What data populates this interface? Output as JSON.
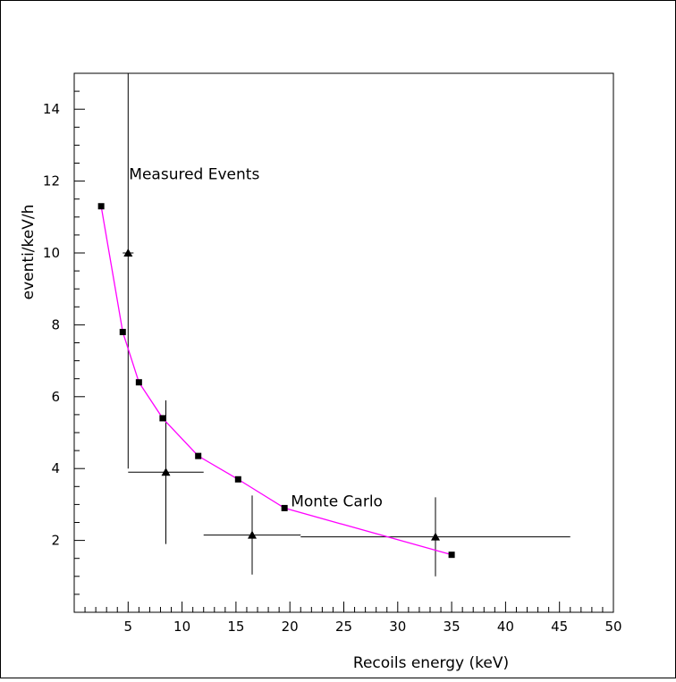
{
  "chart_data": {
    "type": "scatter",
    "xlabel": "Recoils energy (keV)",
    "ylabel": "eventi/keV/h",
    "xlim": [
      0,
      50
    ],
    "ylim": [
      0,
      15
    ],
    "x_ticks": [
      5,
      10,
      15,
      20,
      25,
      30,
      35,
      40,
      45,
      50
    ],
    "y_ticks": [
      2,
      4,
      6,
      8,
      10,
      12,
      14
    ],
    "grid": false,
    "legend": "none",
    "annotations": [
      {
        "text": "Measured Events",
        "x": 5.0,
        "y": 12.2
      },
      {
        "text": "Monte Carlo",
        "x": 20.0,
        "y": 3.1
      }
    ],
    "series": [
      {
        "name": "Monte Carlo",
        "marker": "square",
        "line": true,
        "color": "#ff00ff",
        "points": [
          {
            "x": 2.5,
            "y": 11.3
          },
          {
            "x": 4.5,
            "y": 7.8
          },
          {
            "x": 6.0,
            "y": 6.4
          },
          {
            "x": 8.2,
            "y": 5.4
          },
          {
            "x": 11.5,
            "y": 4.35
          },
          {
            "x": 15.2,
            "y": 3.7
          },
          {
            "x": 19.5,
            "y": 2.9
          },
          {
            "x": 35.0,
            "y": 1.6
          }
        ]
      },
      {
        "name": "Measured Events",
        "marker": "triangle",
        "line": false,
        "color": "#000000",
        "points": [
          {
            "x": 5.0,
            "y": 10.0,
            "xerr": [
              0.5,
              0.5
            ],
            "yerr": [
              6.0,
              5.0
            ]
          },
          {
            "x": 8.5,
            "y": 3.9,
            "xerr": [
              3.5,
              3.5
            ],
            "yerr": [
              2.0,
              2.0
            ]
          },
          {
            "x": 16.5,
            "y": 2.15,
            "xerr": [
              4.5,
              4.5
            ],
            "yerr": [
              1.1,
              1.1
            ]
          },
          {
            "x": 33.5,
            "y": 2.1,
            "xerr": [
              12.5,
              12.5
            ],
            "yerr": [
              1.1,
              1.1
            ]
          }
        ]
      }
    ]
  }
}
